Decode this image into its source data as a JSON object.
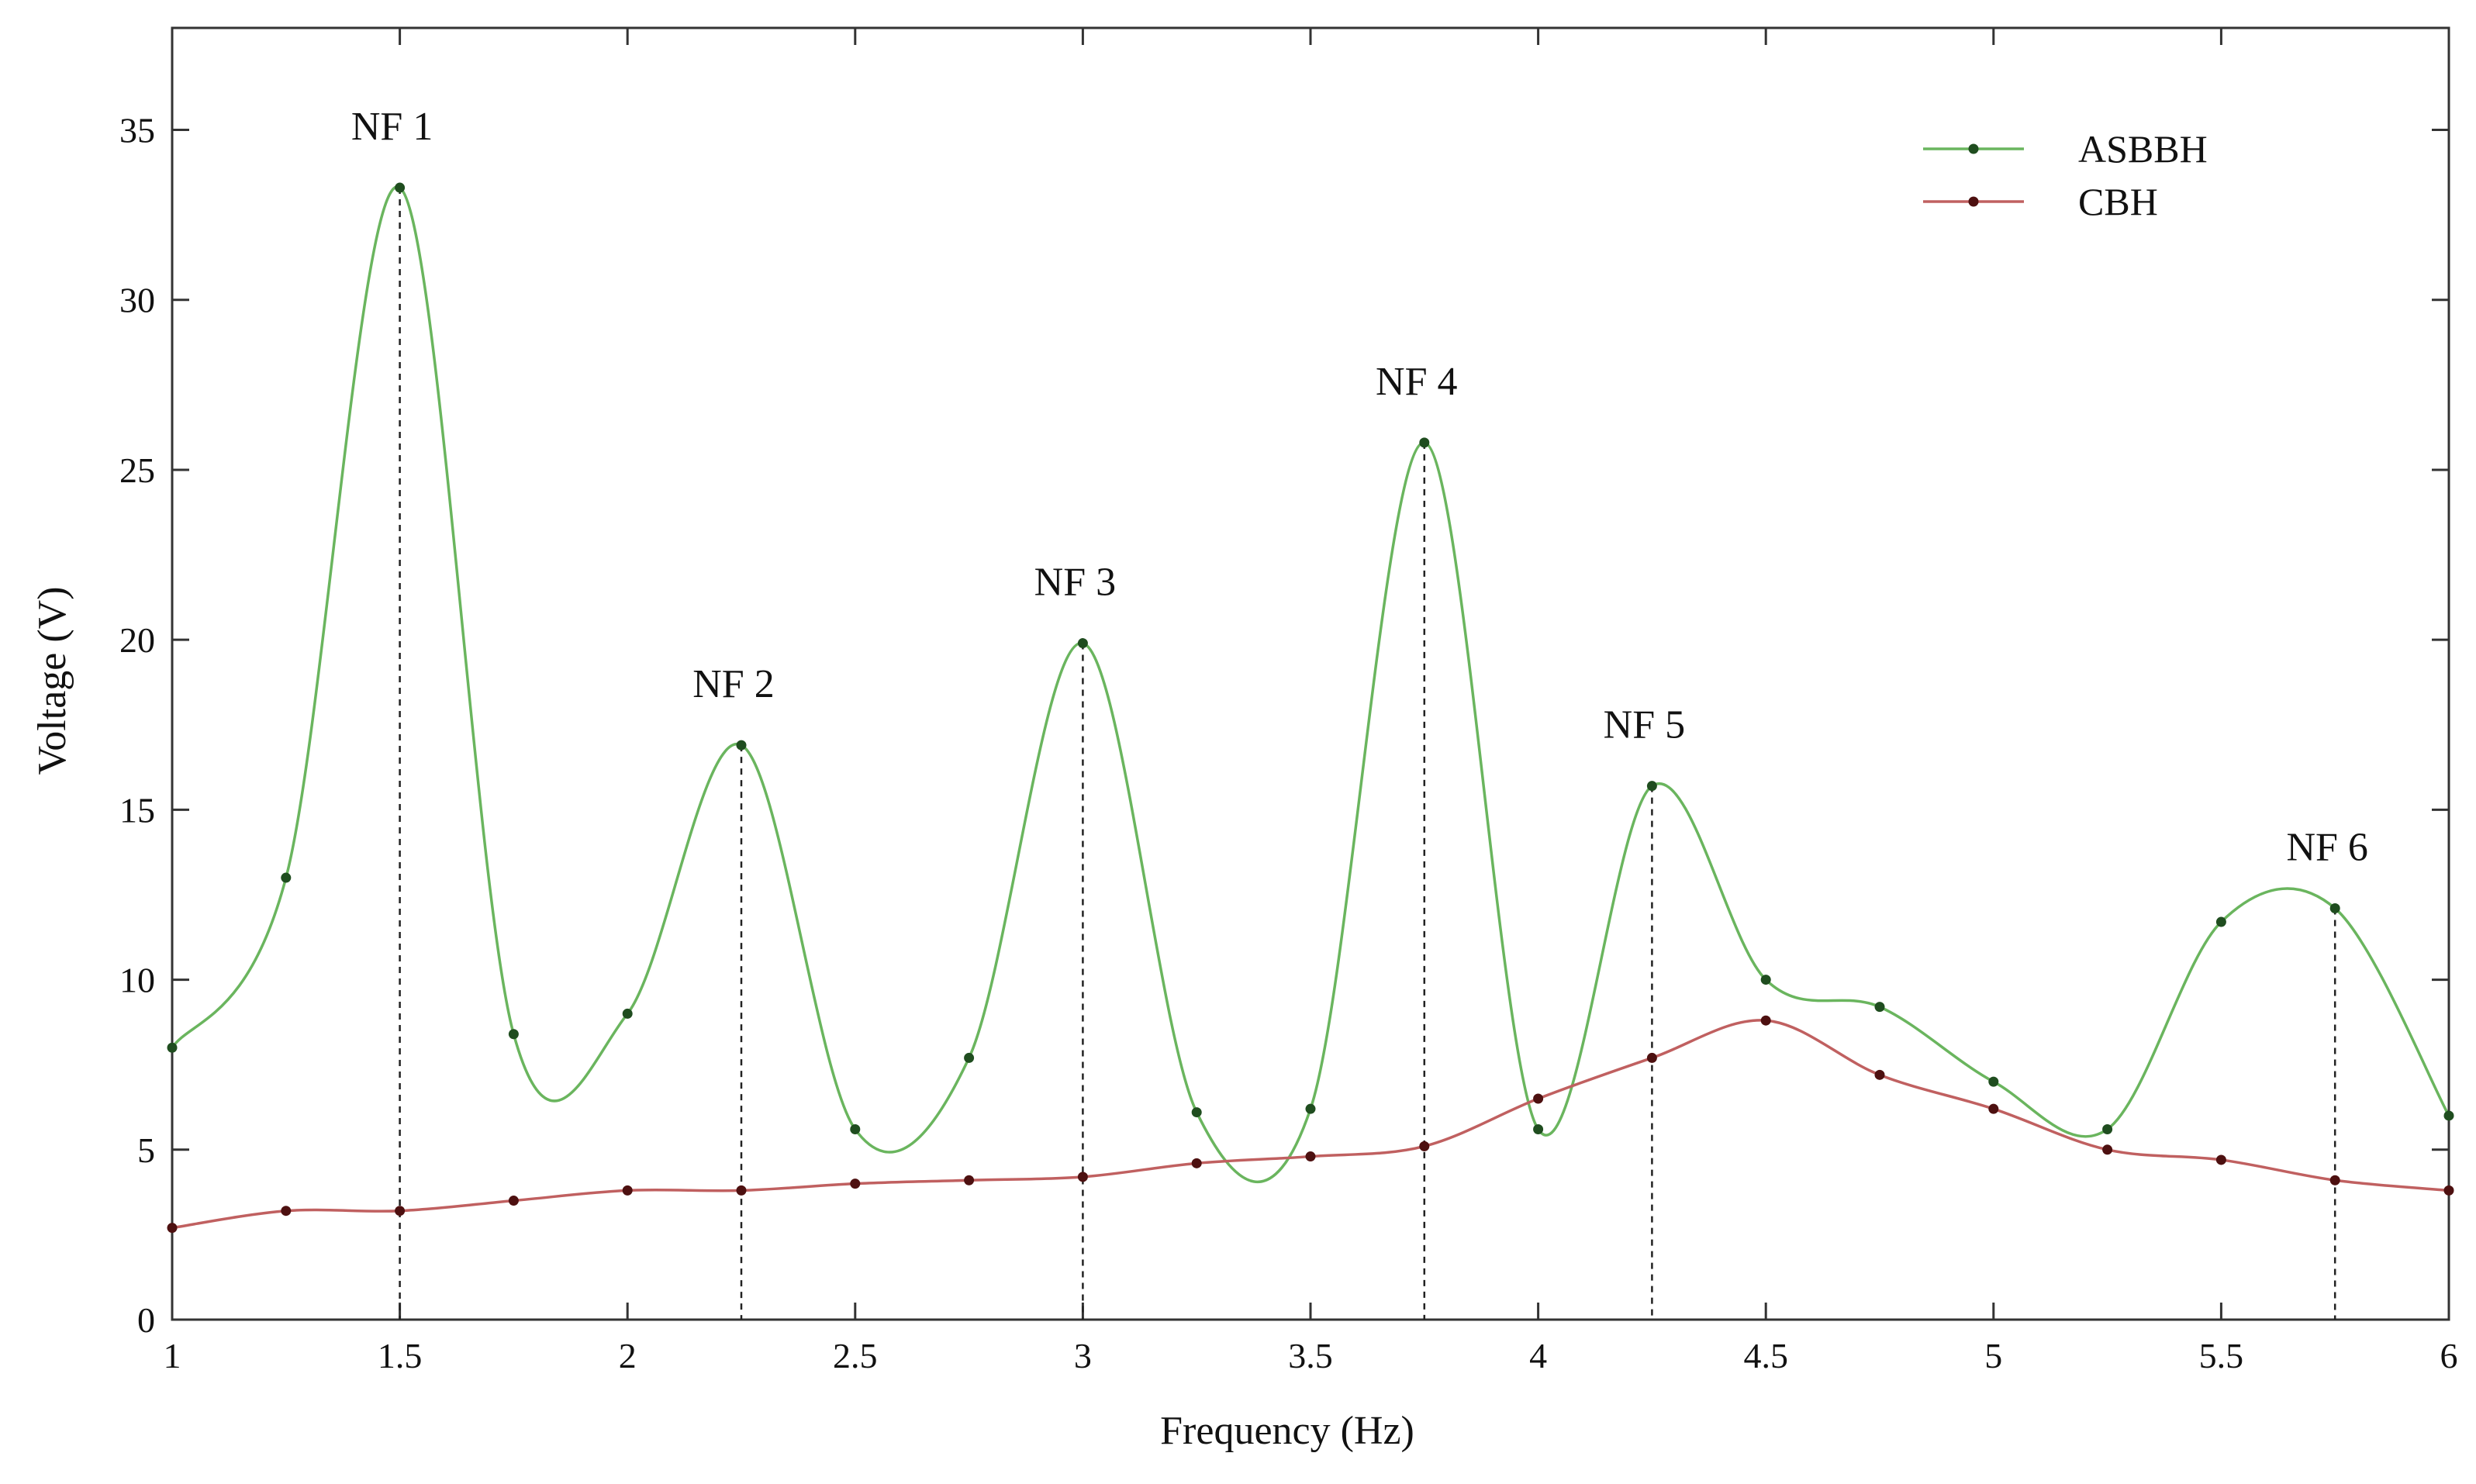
{
  "chart_data": {
    "type": "line",
    "xlabel": "Frequency (Hz)",
    "ylabel": "Voltage (V)",
    "xlim": [
      1,
      6
    ],
    "ylim": [
      0,
      38
    ],
    "x_ticks": [
      "1",
      "1.5",
      "2",
      "2.5",
      "3",
      "3.5",
      "4",
      "4.5",
      "5",
      "5.5",
      "6"
    ],
    "y_ticks": [
      "0",
      "5",
      "10",
      "15",
      "20",
      "25",
      "30",
      "35"
    ],
    "grid": false,
    "legend_position": "top-right",
    "series": [
      {
        "name": "ASBBH",
        "color": "#6ab55e",
        "marker_color": "#1f4d1f",
        "x": [
          1.0,
          1.25,
          1.5,
          1.75,
          2.0,
          2.25,
          2.5,
          2.75,
          3.0,
          3.25,
          3.5,
          3.75,
          4.0,
          4.25,
          4.5,
          4.75,
          5.0,
          5.25,
          5.5,
          5.75,
          6.0
        ],
        "values": [
          8.0,
          13.0,
          33.3,
          8.4,
          9.0,
          16.9,
          5.6,
          7.7,
          19.9,
          6.1,
          6.2,
          25.8,
          5.6,
          15.7,
          10.0,
          9.2,
          7.0,
          5.6,
          11.7,
          12.1,
          6.0
        ]
      },
      {
        "name": "CBH",
        "color": "#c06060",
        "marker_color": "#4d1010",
        "x": [
          1.0,
          1.25,
          1.5,
          1.75,
          2.0,
          2.25,
          2.5,
          2.75,
          3.0,
          3.25,
          3.5,
          3.75,
          4.0,
          4.25,
          4.5,
          4.75,
          5.0,
          5.25,
          5.5,
          5.75,
          6.0
        ],
        "values": [
          2.7,
          3.2,
          3.2,
          3.5,
          3.8,
          3.8,
          4.0,
          4.1,
          4.2,
          4.6,
          4.8,
          5.1,
          6.5,
          7.7,
          8.8,
          7.2,
          6.2,
          5.0,
          4.7,
          4.1,
          3.8
        ]
      }
    ],
    "annotations": [
      {
        "label": "NF 1",
        "x": 1.5,
        "y": 33.3
      },
      {
        "label": "NF 2",
        "x": 2.25,
        "y": 16.9
      },
      {
        "label": "NF 3",
        "x": 3.0,
        "y": 19.9
      },
      {
        "label": "NF 4",
        "x": 3.75,
        "y": 25.8
      },
      {
        "label": "NF 5",
        "x": 4.25,
        "y": 15.7
      },
      {
        "label": "NF 6",
        "x": 5.75,
        "y": 12.1
      }
    ]
  }
}
